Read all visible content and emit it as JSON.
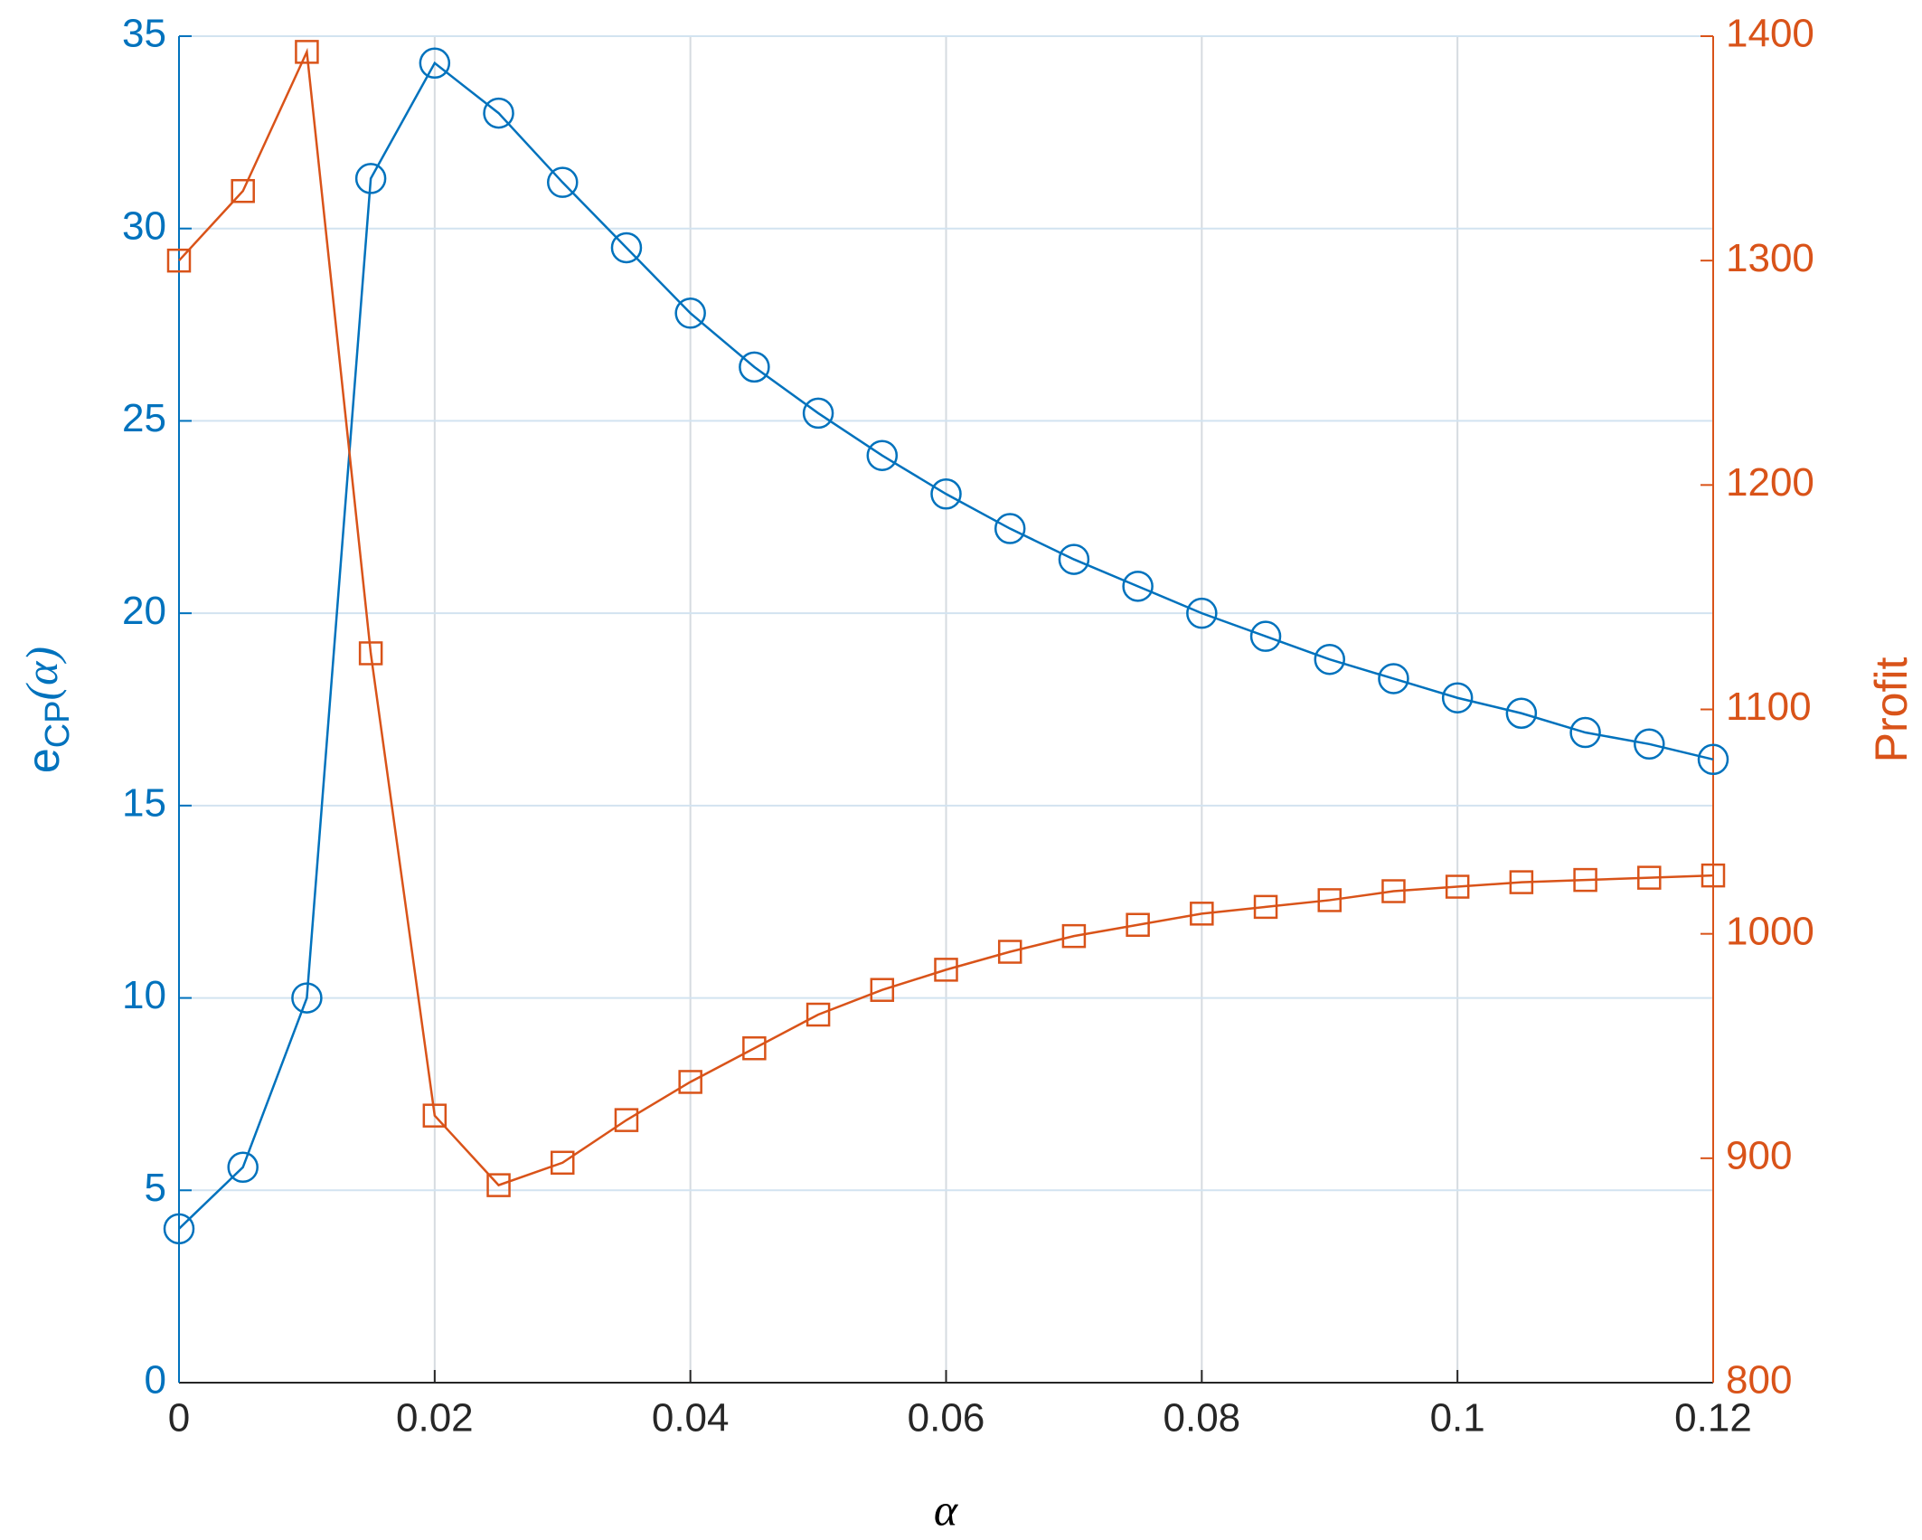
{
  "chart_data": {
    "type": "line",
    "xlabel": "α",
    "ylabel": [
      "e",
      "CP",
      "(α)"
    ],
    "y2label": "Profit",
    "x": [
      0,
      0.005,
      0.01,
      0.015,
      0.02,
      0.025,
      0.03,
      0.035,
      0.04,
      0.045,
      0.05,
      0.055,
      0.06,
      0.065,
      0.07,
      0.075,
      0.08,
      0.085,
      0.09,
      0.095,
      0.1,
      0.105,
      0.11,
      0.115,
      0.12
    ],
    "series": [
      {
        "color": "#0072bd",
        "marker": "circle",
        "values": [
          4.0,
          5.6,
          10.0,
          31.3,
          34.3,
          33.0,
          31.2,
          29.5,
          27.8,
          26.4,
          25.2,
          24.1,
          23.1,
          22.2,
          21.4,
          20.7,
          20.0,
          19.4,
          18.8,
          18.3,
          17.8,
          17.4,
          16.9,
          16.6,
          16.2
        ]
      },
      {
        "color": "#d95319",
        "marker": "square",
        "axis": "y2",
        "values": [
          1300,
          1331,
          1393,
          1125,
          919,
          888,
          898,
          917,
          934,
          949,
          964,
          975,
          984,
          992,
          999,
          1004,
          1009,
          1012,
          1015,
          1019,
          1021,
          1023,
          1024,
          1025,
          1026
        ]
      }
    ],
    "xlim": [
      0,
      0.12
    ],
    "xticks": [
      0,
      0.02,
      0.04,
      0.06,
      0.08,
      0.1,
      0.12
    ],
    "ylim": [
      0,
      35
    ],
    "yticks": [
      0,
      5,
      10,
      15,
      20,
      25,
      30,
      35
    ],
    "y2lim": [
      800,
      1400
    ],
    "y2ticks": [
      800,
      900,
      1000,
      1100,
      1200,
      1300,
      1400
    ],
    "grid": true
  }
}
